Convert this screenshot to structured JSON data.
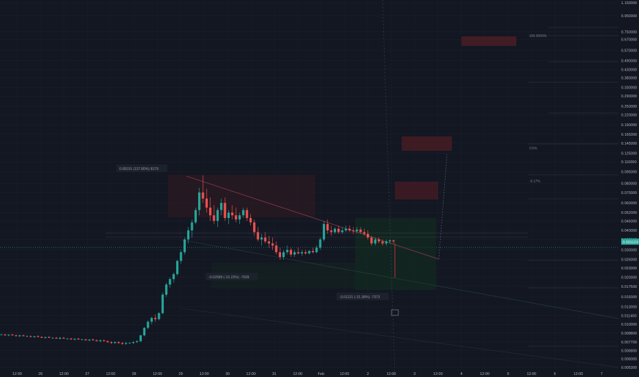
{
  "chart_data": {
    "type": "candlestick",
    "title": "",
    "x_ticks": [
      "12:00",
      "26",
      "12:00",
      "27",
      "12:00",
      "28",
      "12:00",
      "29",
      "12:00",
      "30",
      "12:00",
      "31",
      "12:00",
      "Feb",
      "12:00",
      "2",
      "12:00",
      "3",
      "12:00",
      "4",
      "12:00",
      "5",
      "12:00",
      "6",
      "12:00",
      "7"
    ],
    "y_scale": "log",
    "y_ticks": [
      "1.150000",
      "0.950000",
      "0.750000",
      "0.670000",
      "0.570000",
      "0.490000",
      "0.430000",
      "0.380000",
      "0.330000",
      "0.290000",
      "0.250000",
      "0.220000",
      "0.190000",
      "0.165000",
      "0.145000",
      "0.125000",
      "0.110000",
      "0.095000",
      "0.080000",
      "0.070000",
      "0.060000",
      "0.052000",
      "0.046000",
      "0.040000",
      "0.035000",
      "0.030000",
      "0.026000",
      "0.023000",
      "0.020000",
      "0.017500",
      "0.015000",
      "0.013000",
      "0.011400",
      "0.010000",
      "0.008800",
      "0.007700",
      "0.006800",
      "0.006000",
      "0.005300"
    ],
    "last_price": "0.031123",
    "series": [
      {
        "values": [
          [
            0.0086,
            0.0087,
            0.0085,
            0.0086
          ],
          [
            0.0086,
            0.0087,
            0.0085,
            0.0085
          ],
          [
            0.0085,
            0.0086,
            0.0084,
            0.0086
          ],
          [
            0.0086,
            0.0087,
            0.0085,
            0.0085
          ],
          [
            0.0085,
            0.0086,
            0.0084,
            0.0084
          ],
          [
            0.0084,
            0.0086,
            0.0083,
            0.0085
          ],
          [
            0.0085,
            0.0086,
            0.0084,
            0.0084
          ],
          [
            0.0084,
            0.0085,
            0.0083,
            0.0084
          ],
          [
            0.0084,
            0.0085,
            0.0083,
            0.0083
          ],
          [
            0.0083,
            0.0084,
            0.0082,
            0.0084
          ],
          [
            0.0084,
            0.0085,
            0.0083,
            0.0083
          ],
          [
            0.0083,
            0.0084,
            0.0082,
            0.0082
          ],
          [
            0.0082,
            0.0083,
            0.0081,
            0.0083
          ],
          [
            0.0083,
            0.0084,
            0.0082,
            0.0082
          ],
          [
            0.0082,
            0.0083,
            0.0081,
            0.0082
          ],
          [
            0.0082,
            0.0083,
            0.0081,
            0.0081
          ],
          [
            0.0081,
            0.0083,
            0.008,
            0.0082
          ],
          [
            0.0082,
            0.0083,
            0.0081,
            0.0081
          ],
          [
            0.0081,
            0.0082,
            0.008,
            0.0081
          ],
          [
            0.0081,
            0.0082,
            0.008,
            0.008
          ],
          [
            0.008,
            0.0081,
            0.0079,
            0.0081
          ],
          [
            0.0081,
            0.0082,
            0.008,
            0.008
          ],
          [
            0.008,
            0.0081,
            0.0079,
            0.008
          ],
          [
            0.008,
            0.0081,
            0.0079,
            0.0079
          ],
          [
            0.0079,
            0.008,
            0.0078,
            0.008
          ],
          [
            0.008,
            0.0081,
            0.0079,
            0.0079
          ],
          [
            0.0079,
            0.008,
            0.0078,
            0.0078
          ],
          [
            0.0078,
            0.008,
            0.0077,
            0.0079
          ],
          [
            0.0079,
            0.008,
            0.0078,
            0.0078
          ],
          [
            0.0078,
            0.0079,
            0.0076,
            0.0077
          ],
          [
            0.0077,
            0.0078,
            0.0075,
            0.0076
          ],
          [
            0.0076,
            0.0078,
            0.0075,
            0.0077
          ],
          [
            0.0077,
            0.0078,
            0.0075,
            0.0076
          ],
          [
            0.0076,
            0.0077,
            0.0074,
            0.0075
          ],
          [
            0.0075,
            0.0077,
            0.0074,
            0.0076
          ],
          [
            0.0076,
            0.0077,
            0.0075,
            0.0076
          ],
          [
            0.0076,
            0.0078,
            0.0075,
            0.0077
          ],
          [
            0.0077,
            0.0079,
            0.0076,
            0.0078
          ],
          [
            0.0078,
            0.0086,
            0.0077,
            0.0085
          ],
          [
            0.0085,
            0.0096,
            0.0084,
            0.0095
          ],
          [
            0.0095,
            0.0106,
            0.0093,
            0.0104
          ],
          [
            0.0104,
            0.0112,
            0.01,
            0.011
          ],
          [
            0.011,
            0.0116,
            0.0104,
            0.0108
          ],
          [
            0.0108,
            0.012,
            0.0106,
            0.0118
          ],
          [
            0.0118,
            0.016,
            0.0116,
            0.0155
          ],
          [
            0.0155,
            0.0185,
            0.015,
            0.018
          ],
          [
            0.018,
            0.02,
            0.0172,
            0.0195
          ],
          [
            0.0195,
            0.0215,
            0.0185,
            0.021
          ],
          [
            0.021,
            0.026,
            0.0205,
            0.0255
          ],
          [
            0.0255,
            0.03,
            0.0245,
            0.029
          ],
          [
            0.029,
            0.036,
            0.028,
            0.035
          ],
          [
            0.035,
            0.042,
            0.033,
            0.04
          ],
          [
            0.04,
            0.047,
            0.036,
            0.045
          ],
          [
            0.045,
            0.056,
            0.044,
            0.054
          ],
          [
            0.054,
            0.075,
            0.05,
            0.07
          ],
          [
            0.07,
            0.09,
            0.06,
            0.064
          ],
          [
            0.064,
            0.074,
            0.052,
            0.056
          ],
          [
            0.056,
            0.065,
            0.046,
            0.05
          ],
          [
            0.05,
            0.058,
            0.044,
            0.046
          ],
          [
            0.046,
            0.056,
            0.042,
            0.054
          ],
          [
            0.054,
            0.064,
            0.05,
            0.06
          ],
          [
            0.06,
            0.065,
            0.046,
            0.048
          ],
          [
            0.048,
            0.054,
            0.044,
            0.052
          ],
          [
            0.052,
            0.058,
            0.047,
            0.05
          ],
          [
            0.05,
            0.056,
            0.045,
            0.047
          ],
          [
            0.047,
            0.052,
            0.044,
            0.05
          ],
          [
            0.05,
            0.056,
            0.048,
            0.054
          ],
          [
            0.054,
            0.056,
            0.046,
            0.048
          ],
          [
            0.048,
            0.051,
            0.043,
            0.045
          ],
          [
            0.045,
            0.047,
            0.037,
            0.039
          ],
          [
            0.039,
            0.042,
            0.034,
            0.035
          ],
          [
            0.035,
            0.038,
            0.032,
            0.036
          ],
          [
            0.036,
            0.039,
            0.033,
            0.034
          ],
          [
            0.034,
            0.037,
            0.031,
            0.033
          ],
          [
            0.033,
            0.036,
            0.03,
            0.032
          ],
          [
            0.032,
            0.034,
            0.028,
            0.029
          ],
          [
            0.029,
            0.031,
            0.026,
            0.027
          ],
          [
            0.027,
            0.03,
            0.026,
            0.029
          ],
          [
            0.029,
            0.032,
            0.028,
            0.03
          ],
          [
            0.03,
            0.031,
            0.027,
            0.028
          ],
          [
            0.028,
            0.03,
            0.027,
            0.029
          ],
          [
            0.029,
            0.031,
            0.028,
            0.0285
          ],
          [
            0.0285,
            0.03,
            0.0275,
            0.029
          ],
          [
            0.029,
            0.03,
            0.028,
            0.0285
          ],
          [
            0.0285,
            0.03,
            0.028,
            0.0295
          ],
          [
            0.0295,
            0.031,
            0.0285,
            0.029
          ],
          [
            0.029,
            0.032,
            0.0285,
            0.031
          ],
          [
            0.031,
            0.036,
            0.03,
            0.035
          ],
          [
            0.035,
            0.046,
            0.034,
            0.044
          ],
          [
            0.044,
            0.047,
            0.038,
            0.04
          ],
          [
            0.04,
            0.043,
            0.037,
            0.039
          ],
          [
            0.039,
            0.042,
            0.038,
            0.041
          ],
          [
            0.041,
            0.043,
            0.038,
            0.039
          ],
          [
            0.039,
            0.042,
            0.038,
            0.04
          ],
          [
            0.04,
            0.043,
            0.039,
            0.041
          ],
          [
            0.041,
            0.043,
            0.039,
            0.04
          ],
          [
            0.04,
            0.042,
            0.038,
            0.0395
          ],
          [
            0.0395,
            0.042,
            0.0385,
            0.0405
          ],
          [
            0.0405,
            0.042,
            0.038,
            0.039
          ],
          [
            0.039,
            0.041,
            0.037,
            0.038
          ],
          [
            0.038,
            0.04,
            0.035,
            0.036
          ],
          [
            0.036,
            0.037,
            0.032,
            0.033
          ],
          [
            0.033,
            0.036,
            0.032,
            0.035
          ],
          [
            0.035,
            0.036,
            0.033,
            0.034
          ],
          [
            0.034,
            0.035,
            0.032,
            0.033
          ],
          [
            0.033,
            0.035,
            0.032,
            0.034
          ],
          [
            0.034,
            0.035,
            0.033,
            0.0345
          ],
          [
            0.0345,
            0.035,
            0.033,
            0.034
          ]
        ]
      }
    ],
    "annotations": [
      "0.08191 (137.80%) 8179",
      "-0.02589 (-15.23%) -7509",
      "-0.01121 (-31.38%) -7373",
      "100.0000%",
      "0.5%",
      "-0.17%"
    ]
  }
}
